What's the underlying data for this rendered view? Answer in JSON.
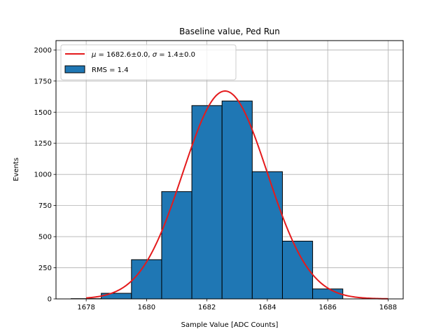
{
  "chart_data": {
    "type": "bar",
    "title": "Baseline value, Ped Run",
    "xlabel": "Sample Value [ADC Counts]",
    "ylabel": "Events",
    "xlim": [
      1677.0,
      1688.5
    ],
    "ylim": [
      0,
      2075
    ],
    "xticks": [
      1678,
      1680,
      1682,
      1684,
      1686,
      1688
    ],
    "yticks": [
      0,
      250,
      500,
      750,
      1000,
      1250,
      1500,
      1750,
      2000
    ],
    "grid": true,
    "legend_position": "top-left",
    "histogram": {
      "name": "RMS = 1.4",
      "color": "#1f77b4",
      "edgecolor": "#000000",
      "bin_edges": [
        1677.5,
        1678.5,
        1679.5,
        1680.5,
        1681.5,
        1682.5,
        1683.5,
        1684.5,
        1685.5,
        1686.5
      ],
      "counts": [
        2,
        45,
        315,
        862,
        1553,
        1590,
        1022,
        464,
        80
      ]
    },
    "fit": {
      "name": "μ = 1682.6±0.0, σ = 1.4±0.0",
      "label_parts": {
        "mu_symbol": "μ",
        "mu_text": " = 1682.6±0.0, ",
        "sigma_symbol": "σ",
        "sigma_text": " = 1.4±0.0"
      },
      "color": "#e41a1c",
      "type": "gaussian",
      "amplitude": 1670,
      "mean": 1682.6,
      "sigma": 1.4,
      "x_range": [
        1678.0,
        1688.0
      ]
    }
  }
}
